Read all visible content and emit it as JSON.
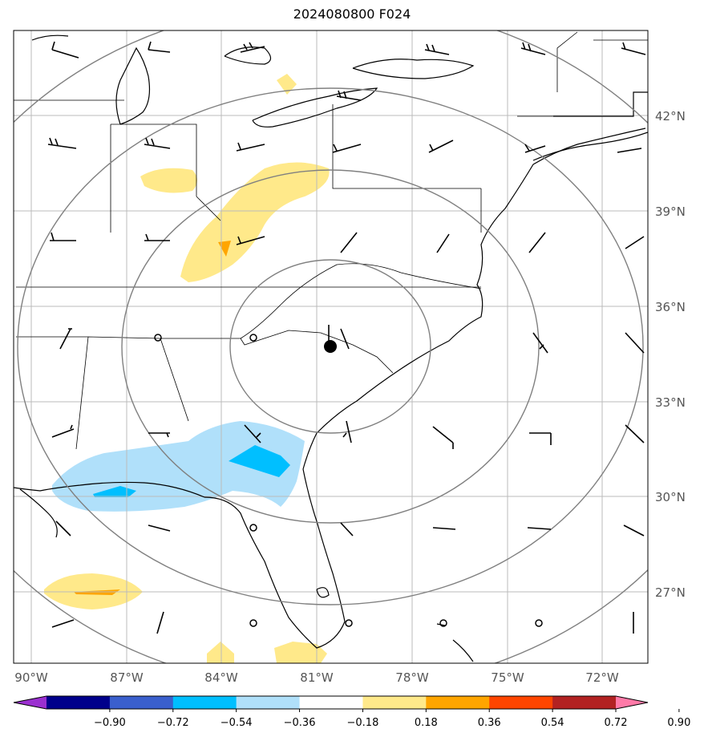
{
  "title": "2024080800 F024",
  "lon_labels": [
    "90°W",
    "87°W",
    "84°W",
    "81°W",
    "78°W",
    "75°W",
    "72°W"
  ],
  "lat_labels": [
    "42°N",
    "39°N",
    "36°N",
    "33°N",
    "30°N",
    "27°N"
  ],
  "colorbar": {
    "ticks": [
      "−0.90",
      "−0.72",
      "−0.54",
      "−0.36",
      "−0.18",
      "0.18",
      "0.36",
      "0.54",
      "0.72",
      "0.90"
    ],
    "colors": [
      "#9b30d0",
      "#00008b",
      "#3a5fcd",
      "#00bfff",
      "#b0e0fa",
      "#ffffff",
      "#ffe98a",
      "#ffa500",
      "#ff4500",
      "#b22222",
      "#ff7aa8"
    ]
  },
  "colors": {
    "yellow": "#ffe98a",
    "orange": "#ffa500",
    "light_blue": "#b0e0fa",
    "blue": "#00bfff",
    "coast": "#000000",
    "grid": "#bbbbbb",
    "range_rings": "#808080"
  }
}
